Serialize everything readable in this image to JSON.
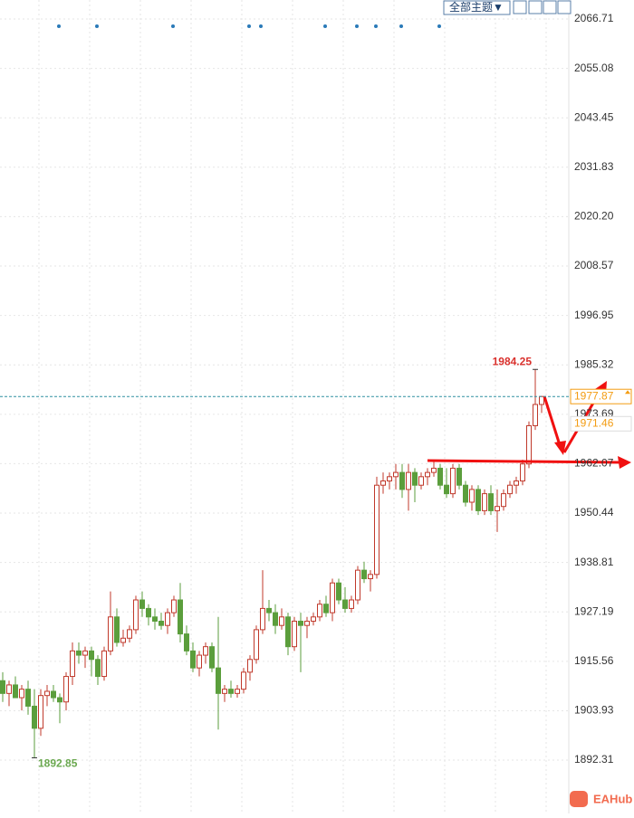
{
  "chart_data": {
    "type": "candlestick",
    "toolbar_label": "全部主题▼",
    "logo": "EAHub",
    "ylim": [
      1879.75,
      2071.18
    ],
    "yticks": [
      2066.71,
      2055.08,
      2043.45,
      2031.83,
      {
        "value": 2020.2,
        "label": "2020.20"
      },
      2008.57,
      1996.95,
      1985.32,
      1973.69,
      1962.07,
      1950.44,
      1938.81,
      1927.19,
      1915.56,
      1903.93,
      1892.31
    ],
    "grid": true,
    "up_color": "#c0392b",
    "down_color": "#5b9e3c",
    "secondary_price": 1971.46,
    "ohlc": [
      [
        1911,
        1913,
        1906,
        1908
      ],
      [
        1908,
        1911,
        1905,
        1910
      ],
      [
        1910,
        1912,
        1907,
        1907
      ],
      [
        1907,
        1910,
        1904,
        1909
      ],
      [
        1909,
        1911,
        1903,
        1905
      ],
      [
        1905,
        1909,
        1892.85,
        1899.8
      ],
      [
        1899.8,
        1909,
        1898,
        1907.5
      ],
      [
        1907.5,
        1910,
        1905,
        1908.5
      ],
      [
        1908.5,
        1910,
        1906,
        1907
      ],
      [
        1907,
        1908,
        1901,
        1906
      ],
      [
        1906,
        1913,
        1904,
        1912
      ],
      [
        1912,
        1920,
        1910,
        1918
      ],
      [
        1918,
        1920,
        1915,
        1917
      ],
      [
        1917,
        1919,
        1914,
        1918
      ],
      [
        1918,
        1919,
        1912,
        1916
      ],
      [
        1916,
        1917,
        1910,
        1912
      ],
      [
        1912,
        1919,
        1911,
        1918
      ],
      [
        1918,
        1932,
        1917,
        1926
      ],
      [
        1926,
        1928,
        1919,
        1920
      ],
      [
        1920,
        1923,
        1919,
        1921
      ],
      [
        1921,
        1924,
        1920,
        1923
      ],
      [
        1923,
        1931,
        1922,
        1930
      ],
      [
        1930,
        1932,
        1926,
        1928
      ],
      [
        1928,
        1929,
        1924,
        1926
      ],
      [
        1926,
        1928,
        1923,
        1925
      ],
      [
        1925,
        1927,
        1923,
        1924
      ],
      [
        1924,
        1928,
        1922,
        1927
      ],
      [
        1927,
        1931,
        1926,
        1930
      ],
      [
        1930,
        1934,
        1920,
        1922
      ],
      [
        1922,
        1924,
        1917,
        1918
      ],
      [
        1918,
        1920,
        1913,
        1914
      ],
      [
        1914,
        1918,
        1912,
        1917
      ],
      [
        1917,
        1920,
        1915,
        1919
      ],
      [
        1919,
        1920,
        1913,
        1914
      ],
      [
        1914,
        1926,
        1899.5,
        1908
      ],
      [
        1908,
        1910,
        1906,
        1909
      ],
      [
        1909,
        1911,
        1907,
        1908
      ],
      [
        1908,
        1910,
        1907,
        1909
      ],
      [
        1909,
        1914,
        1908,
        1913
      ],
      [
        1913,
        1917,
        1911,
        1916
      ],
      [
        1916,
        1924,
        1915,
        1923
      ],
      [
        1923,
        1937,
        1922,
        1928
      ],
      [
        1928,
        1930,
        1925,
        1927
      ],
      [
        1927,
        1929,
        1922,
        1924
      ],
      [
        1924,
        1928,
        1923,
        1926
      ],
      [
        1926,
        1927,
        1917,
        1919
      ],
      [
        1919,
        1926,
        1918,
        1925
      ],
      [
        1925,
        1927,
        1913,
        1924
      ],
      [
        1924,
        1926,
        1921,
        1925
      ],
      [
        1925,
        1927,
        1924,
        1926
      ],
      [
        1926,
        1930,
        1925,
        1929
      ],
      [
        1929,
        1931,
        1926,
        1927
      ],
      [
        1927,
        1935,
        1925,
        1934
      ],
      [
        1934,
        1935,
        1929,
        1930
      ],
      [
        1930,
        1933,
        1927,
        1928
      ],
      [
        1928,
        1931,
        1927,
        1930
      ],
      [
        1930,
        1938,
        1929,
        1937
      ],
      [
        1937,
        1939,
        1934,
        1935
      ],
      [
        1935,
        1937,
        1932,
        1936
      ],
      [
        1936,
        1959,
        1935,
        1957
      ],
      [
        1957,
        1960,
        1955,
        1958
      ],
      [
        1958,
        1960,
        1956,
        1959
      ],
      [
        1959,
        1962,
        1956,
        1960
      ],
      [
        1960,
        1962,
        1954,
        1956
      ],
      [
        1956,
        1962,
        1951,
        1960
      ],
      [
        1960,
        1961,
        1953,
        1957
      ],
      [
        1957,
        1960,
        1956,
        1959
      ],
      [
        1959,
        1961,
        1957,
        1960
      ],
      [
        1960,
        1963,
        1959,
        1961
      ],
      [
        1961,
        1962,
        1956,
        1957
      ],
      [
        1957,
        1961,
        1954,
        1955
      ],
      [
        1955,
        1962,
        1954,
        1961
      ],
      [
        1961,
        1962,
        1956,
        1957
      ],
      [
        1957,
        1958,
        1952,
        1953
      ],
      [
        1953,
        1957,
        1951,
        1956
      ],
      [
        1956,
        1957,
        1950,
        1951
      ],
      [
        1951,
        1956,
        1950,
        1955
      ],
      [
        1955,
        1957,
        1950,
        1951
      ],
      [
        1951,
        1956,
        1946,
        1952
      ],
      [
        1952,
        1956,
        1951,
        1955
      ],
      [
        1955,
        1958,
        1954,
        1957
      ],
      [
        1957,
        1959,
        1955,
        1958
      ],
      [
        1958,
        1963,
        1957,
        1962
      ],
      [
        1962,
        1972,
        1961,
        1971
      ],
      [
        1971,
        1984.25,
        1970,
        1976
      ],
      [
        1976,
        1978,
        1974,
        1977.87
      ]
    ]
  }
}
